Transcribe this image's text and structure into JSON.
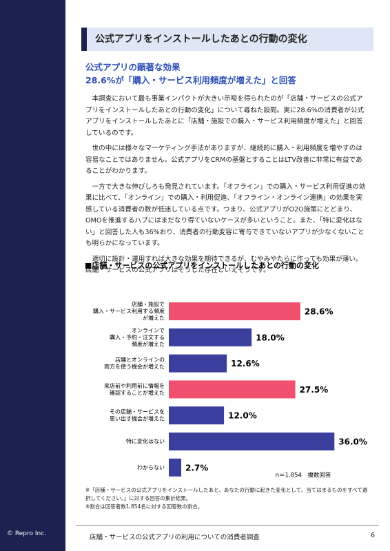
{
  "sidebar": {
    "copyright": "© Repro Inc."
  },
  "header": {
    "title": "公式アプリをインストールしたあとの行動の変化"
  },
  "heading": [
    "公式アプリの顕著な効果",
    "28.6%が「購入・サービス利用頻度が増えた」と回答"
  ],
  "paragraphs": [
    "本調査において最も事業インパクトが大きい示唆を得られたのが「店舗・サービスの公式アプリをインストールしたあとの行動の変化」について尋ねた設問。実に28.6%の消費者が公式アプリをインストールしたあとに「店舗・施設での購入・サービス利用頻度が増えた」と回答しているのです。",
    "世の中には様々なマーケティング手法がありますが、継続的に購入・利用頻度を増やすのは容易なことではありません。公式アプリをCRMの基盤とすることはLTV改善に非常に有益であることがわかります。",
    "一方で大きな伸びしろも発見されています。「オフライン」での購入・サービス利用促進の効果に比べて、「オンライン」での購入・利用促進、「オフライン・オンライン連携」の効果を実感している消費者の数が低迷している点です。つまり、公式アプリがO2O施策にとどまり、OMOを推進するハブにはまだなり得ていないケースが多いということ。また、「特に変化はない」と回答した人も36%おり、消費者の行動変容に寄与できていないアプリが少なくないことも明らかになっています。",
    "適切に設計・運用すれば大きな効果を期待できるが、むやみやたらに作っても効果が薄い。店舗・サービスの公式アプリはそうした存在といえそうです。"
  ],
  "chart_data": {
    "type": "bar",
    "orientation": "horizontal",
    "title": "■店舗・サービスの公式アプリをインストールしたあとの行動の変化",
    "categories": [
      [
        "店舗・施設で",
        "購入・サービス利用する頻度",
        "が増えた"
      ],
      [
        "オンラインで",
        "購入・予約・注文する",
        "頻度が増えた"
      ],
      [
        "店舗とオンラインの",
        "両方を使う機会が増えた"
      ],
      [
        "来店前や利用前に情報を",
        "確認することが増えた"
      ],
      [
        "その店舗・サービスを",
        "思い出す機会が増えた"
      ],
      [
        "特に変化はない"
      ],
      [
        "わからない"
      ]
    ],
    "values": [
      28.6,
      18.0,
      12.6,
      27.5,
      12.0,
      36.0,
      2.7
    ],
    "value_labels": [
      "28.6%",
      "18.0%",
      "12.6%",
      "27.5%",
      "12.0%",
      "36.0%",
      "2.7%"
    ],
    "colors": [
      "#f0506e",
      "#3a3f9e",
      "#3a3f9e",
      "#f0506e",
      "#3a3f9e",
      "#3a3f9e",
      "#3a3f9e"
    ],
    "xlim": [
      0,
      40
    ],
    "annotation": "n＝1,854　複数回答"
  },
  "notes": [
    "※「店舗・サービスの公式アプリをインストールしたあと、あなたの行動に起きた変化として、当てはまるものをすべて選択してください。」に対する回答の集計結果。",
    "※割合は回答者数1,854名に対する回答数の割合。"
  ],
  "footer": {
    "title": "店舗・サービスの公式アプリの利用についての消費者調査",
    "page": "6"
  }
}
